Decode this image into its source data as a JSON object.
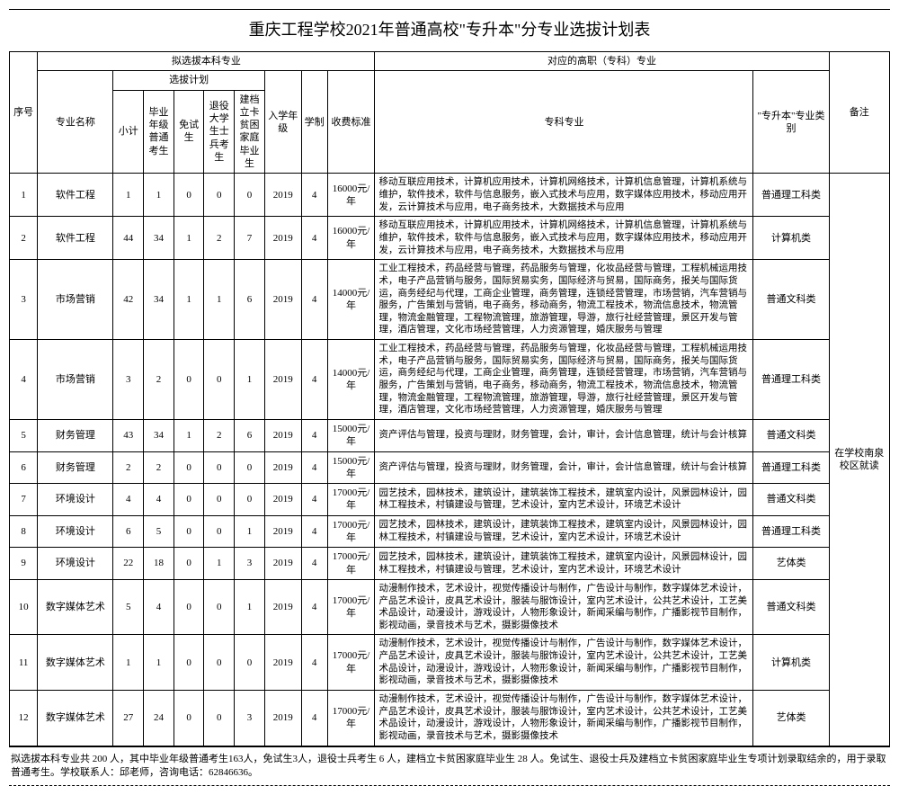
{
  "title": "重庆工程学校2021年普通高校\"专升本\"分专业选拔计划表",
  "headers": {
    "seq": "序号",
    "undergrad_group": "拟选拔本科专业",
    "major_name": "专业名称",
    "plan_group": "选拔计划",
    "subtotal": "小计",
    "grad_normal": "毕业年级普通考生",
    "exempt": "免试生",
    "veteran": "退役大学生士兵考生",
    "poverty": "建档立卡贫困家庭毕业生",
    "enroll_year": "入学年级",
    "duration": "学制",
    "fee": "收费标准",
    "vocational_group": "对应的高职（专科）专业",
    "vocational_major": "专科专业",
    "category": "\"专升本\"专业类别",
    "note": "备注"
  },
  "note_text": "在学校南泉校区就读",
  "footnote": "拟选拔本科专业共 200 人，其中毕业年级普通考生163人，免试生3人，退役士兵考生 6 人，建档立卡贫困家庭毕业生 28 人。免试生、退役士兵及建档立卡贫困家庭毕业生专项计划录取结余的，用于录取普通考生。学校联系人：邱老师，咨询电话：62846636。",
  "rows": [
    {
      "seq": "1",
      "major": "软件工程",
      "subtotal": "1",
      "normal": "1",
      "exempt": "0",
      "veteran": "0",
      "poverty": "0",
      "year": "2019",
      "dur": "4",
      "fee": "16000元/年",
      "spec": "移动互联应用技术，计算机应用技术，计算机网络技术，计算机信息管理，计算机系统与维护，软件技术，软件与信息服务，嵌入式技术与应用，数字媒体应用技术，移动应用开发，云计算技术与应用，电子商务技术，大数据技术与应用",
      "cat": "普通理工科类"
    },
    {
      "seq": "2",
      "major": "软件工程",
      "subtotal": "44",
      "normal": "34",
      "exempt": "1",
      "veteran": "2",
      "poverty": "7",
      "year": "2019",
      "dur": "4",
      "fee": "16000元/年",
      "spec": "移动互联应用技术，计算机应用技术，计算机网络技术，计算机信息管理，计算机系统与维护，软件技术，软件与信息服务，嵌入式技术与应用，数字媒体应用技术，移动应用开发，云计算技术与应用，电子商务技术，大数据技术与应用",
      "cat": "计算机类"
    },
    {
      "seq": "3",
      "major": "市场营销",
      "subtotal": "42",
      "normal": "34",
      "exempt": "1",
      "veteran": "1",
      "poverty": "6",
      "year": "2019",
      "dur": "4",
      "fee": "14000元/年",
      "spec": "工业工程技术，药品经营与管理，药品服务与管理，化妆品经营与管理，工程机械运用技术，电子产品营销与服务，国际贸易实务，国际经济与贸易，国际商务，报关与国际货运，商务经纪与代理，工商企业管理，商务管理，连锁经营管理，市场营销，汽车营销与服务，广告策划与营销，电子商务，移动商务，物流工程技术，物流信息技术，物流管理，物流金融管理，工程物流管理，旅游管理，导游，旅行社经营管理，景区开发与管理，酒店管理，文化市场经营管理，人力资源管理，婚庆服务与管理",
      "cat": "普通文科类"
    },
    {
      "seq": "4",
      "major": "市场营销",
      "subtotal": "3",
      "normal": "2",
      "exempt": "0",
      "veteran": "0",
      "poverty": "1",
      "year": "2019",
      "dur": "4",
      "fee": "14000元/年",
      "spec": "工业工程技术，药品经营与管理，药品服务与管理，化妆品经营与管理，工程机械运用技术，电子产品营销与服务，国际贸易实务，国际经济与贸易，国际商务，报关与国际货运，商务经纪与代理，工商企业管理，商务管理，连锁经营管理，市场营销，汽车营销与服务，广告策划与营销，电子商务，移动商务，物流工程技术，物流信息技术，物流管理，物流金融管理，工程物流管理，旅游管理，导游，旅行社经营管理，景区开发与管理，酒店管理，文化市场经营管理，人力资源管理，婚庆服务与管理",
      "cat": "普通理工科类"
    },
    {
      "seq": "5",
      "major": "财务管理",
      "subtotal": "43",
      "normal": "34",
      "exempt": "1",
      "veteran": "2",
      "poverty": "6",
      "year": "2019",
      "dur": "4",
      "fee": "15000元/年",
      "spec": "资产评估与管理，投资与理财，财务管理，会计，审计，会计信息管理，统计与会计核算",
      "cat": "普通文科类"
    },
    {
      "seq": "6",
      "major": "财务管理",
      "subtotal": "2",
      "normal": "2",
      "exempt": "0",
      "veteran": "0",
      "poverty": "0",
      "year": "2019",
      "dur": "4",
      "fee": "15000元/年",
      "spec": "资产评估与管理，投资与理财，财务管理，会计，审计，会计信息管理，统计与会计核算",
      "cat": "普通理工科类"
    },
    {
      "seq": "7",
      "major": "环境设计",
      "subtotal": "4",
      "normal": "4",
      "exempt": "0",
      "veteran": "0",
      "poverty": "0",
      "year": "2019",
      "dur": "4",
      "fee": "17000元/年",
      "spec": "园艺技术，园林技术，建筑设计，建筑装饰工程技术，建筑室内设计，风景园林设计，园林工程技术，村镇建设与管理，艺术设计，室内艺术设计，环境艺术设计",
      "cat": "普通文科类"
    },
    {
      "seq": "8",
      "major": "环境设计",
      "subtotal": "6",
      "normal": "5",
      "exempt": "0",
      "veteran": "0",
      "poverty": "1",
      "year": "2019",
      "dur": "4",
      "fee": "17000元/年",
      "spec": "园艺技术，园林技术，建筑设计，建筑装饰工程技术，建筑室内设计，风景园林设计，园林工程技术，村镇建设与管理，艺术设计，室内艺术设计，环境艺术设计",
      "cat": "普通理工科类"
    },
    {
      "seq": "9",
      "major": "环境设计",
      "subtotal": "22",
      "normal": "18",
      "exempt": "0",
      "veteran": "1",
      "poverty": "3",
      "year": "2019",
      "dur": "4",
      "fee": "17000元/年",
      "spec": "园艺技术，园林技术，建筑设计，建筑装饰工程技术，建筑室内设计，风景园林设计，园林工程技术，村镇建设与管理，艺术设计，室内艺术设计，环境艺术设计",
      "cat": "艺体类"
    },
    {
      "seq": "10",
      "major": "数字媒体艺术",
      "subtotal": "5",
      "normal": "4",
      "exempt": "0",
      "veteran": "0",
      "poverty": "1",
      "year": "2019",
      "dur": "4",
      "fee": "17000元/年",
      "spec": "动漫制作技术，艺术设计，视觉传播设计与制作，广告设计与制作，数字媒体艺术设计，产品艺术设计，皮具艺术设计，服装与服饰设计，室内艺术设计，公共艺术设计，工艺美术品设计，动漫设计，游戏设计，人物形象设计，新闻采编与制作，广播影视节目制作，影视动画，录音技术与艺术，摄影摄像技术",
      "cat": "普通文科类"
    },
    {
      "seq": "11",
      "major": "数字媒体艺术",
      "subtotal": "1",
      "normal": "1",
      "exempt": "0",
      "veteran": "0",
      "poverty": "0",
      "year": "2019",
      "dur": "4",
      "fee": "17000元/年",
      "spec": "动漫制作技术，艺术设计，视觉传播设计与制作，广告设计与制作，数字媒体艺术设计，产品艺术设计，皮具艺术设计，服装与服饰设计，室内艺术设计，公共艺术设计，工艺美术品设计，动漫设计，游戏设计，人物形象设计，新闻采编与制作，广播影视节目制作，影视动画，录音技术与艺术，摄影摄像技术",
      "cat": "计算机类"
    },
    {
      "seq": "12",
      "major": "数字媒体艺术",
      "subtotal": "27",
      "normal": "24",
      "exempt": "0",
      "veteran": "0",
      "poverty": "3",
      "year": "2019",
      "dur": "4",
      "fee": "17000元/年",
      "spec": "动漫制作技术，艺术设计，视觉传播设计与制作，广告设计与制作，数字媒体艺术设计，产品艺术设计，皮具艺术设计，服装与服饰设计，室内艺术设计，公共艺术设计，工艺美术品设计，动漫设计，游戏设计，人物形象设计，新闻采编与制作，广播影视节目制作，影视动画，录音技术与艺术，摄影摄像技术",
      "cat": "艺体类"
    }
  ]
}
